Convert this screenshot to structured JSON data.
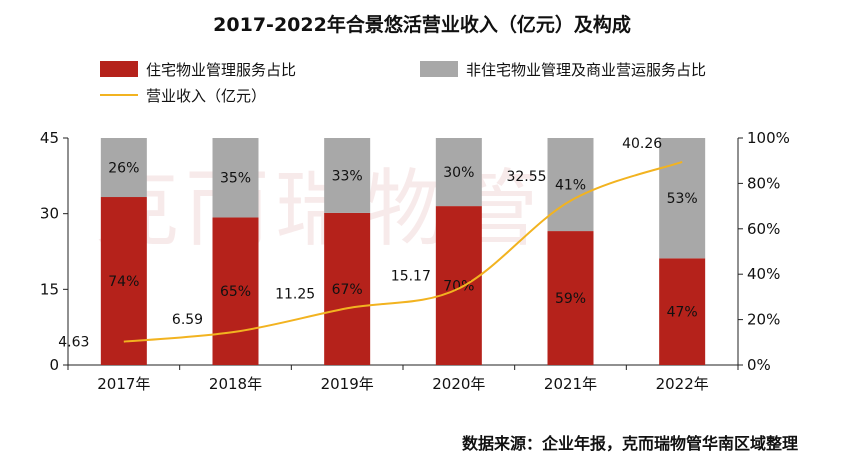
{
  "chart_data": {
    "type": "bar",
    "title": "2017-2022年合景悠活营业收入（亿元）及构成",
    "categories": [
      "2017年",
      "2018年",
      "2019年",
      "2020年",
      "2021年",
      "2022年"
    ],
    "series": [
      {
        "name": "住宅物业管理服务占比",
        "kind": "bar-stacked",
        "axis": "right",
        "color": "#b5221b",
        "values": [
          74,
          65,
          67,
          70,
          59,
          47
        ],
        "labels": [
          "74%",
          "65%",
          "67%",
          "70%",
          "59%",
          "47%"
        ]
      },
      {
        "name": "非住宅物业管理及商业营运服务占比",
        "kind": "bar-stacked",
        "axis": "right",
        "color": "#a8a8a8",
        "values": [
          26,
          35,
          33,
          30,
          41,
          53
        ],
        "labels": [
          "26%",
          "35%",
          "33%",
          "30%",
          "41%",
          "53%"
        ]
      },
      {
        "name": "营业收入（亿元）",
        "kind": "line",
        "axis": "left",
        "color": "#f2b320",
        "values": [
          4.63,
          6.59,
          11.25,
          15.17,
          32.55,
          40.26
        ],
        "labels": [
          "4.63",
          "6.59",
          "11.25",
          "15.17",
          "32.55",
          "40.26"
        ]
      }
    ],
    "left_axis": {
      "ylim": [
        0,
        45
      ],
      "ticks": [
        "0",
        "15",
        "30",
        "45"
      ],
      "tick_values": [
        0,
        15,
        30,
        45
      ]
    },
    "right_axis": {
      "ylim": [
        0,
        100
      ],
      "ticks": [
        "0%",
        "20%",
        "40%",
        "60%",
        "80%",
        "100%"
      ],
      "tick_values": [
        0,
        20,
        40,
        60,
        80,
        100
      ]
    },
    "legend_position": "top-left",
    "grid": false
  },
  "watermark": "克而瑞物管",
  "source": "数据来源：企业年报，克而瑞物管华南区域整理"
}
